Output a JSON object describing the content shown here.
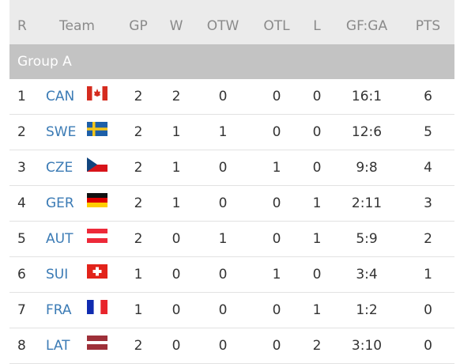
{
  "table": {
    "header": [
      "R",
      "Team",
      "GP",
      "W",
      "OTW",
      "OTL",
      "L",
      "GF:GA",
      "PTS"
    ],
    "group": "Group A",
    "rows": [
      [
        1,
        "CAN",
        2,
        2,
        0,
        0,
        0,
        "16:1",
        6
      ],
      [
        2,
        "SWE",
        2,
        1,
        1,
        0,
        0,
        "12:6",
        5
      ],
      [
        3,
        "CZE",
        2,
        1,
        0,
        1,
        0,
        "9:8",
        4
      ],
      [
        4,
        "GER",
        2,
        1,
        0,
        0,
        1,
        "2:11",
        3
      ],
      [
        5,
        "AUT",
        2,
        0,
        1,
        0,
        1,
        "5:9",
        2
      ],
      [
        6,
        "SUI",
        1,
        0,
        0,
        1,
        0,
        "3:4",
        1
      ],
      [
        7,
        "FRA",
        1,
        0,
        0,
        0,
        1,
        "1:2",
        0
      ],
      [
        8,
        "LAT",
        2,
        0,
        0,
        0,
        2,
        "3:10",
        0
      ]
    ]
  }
}
